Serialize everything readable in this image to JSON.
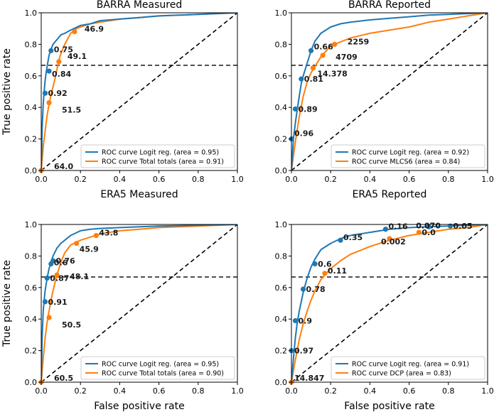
{
  "colors": {
    "blue": "#1f77b4",
    "orange": "#ff7f0e",
    "ref": "#000000"
  },
  "shared": {
    "xticks": [
      "0.0",
      "0.2",
      "0.4",
      "0.6",
      "0.8",
      "1.0"
    ],
    "yticks": [
      "0.0",
      "0.2",
      "0.4",
      "0.6",
      "0.8",
      "1.0"
    ],
    "hline": 0.667
  },
  "chart_data": [
    {
      "type": "line",
      "title": "BARRA Measured",
      "xlabel": "ERA5 Measured",
      "ylabel": "True positive rate",
      "xlim": [
        0,
        1
      ],
      "ylim": [
        0,
        1
      ],
      "legend_position": "lower-right",
      "series": [
        {
          "name": "ROC curve Logit reg. (area = 0.95)",
          "color": "blue",
          "x": [
            0,
            0.005,
            0.01,
            0.015,
            0.02,
            0.025,
            0.03,
            0.04,
            0.05,
            0.06,
            0.08,
            0.1,
            0.12,
            0.15,
            0.2,
            0.25,
            0.3,
            0.4,
            0.5,
            0.6,
            0.8,
            1.0
          ],
          "y": [
            0,
            0.28,
            0.42,
            0.5,
            0.57,
            0.62,
            0.66,
            0.73,
            0.77,
            0.8,
            0.83,
            0.86,
            0.87,
            0.89,
            0.92,
            0.93,
            0.95,
            0.96,
            0.97,
            0.98,
            0.99,
            1.0
          ],
          "points": [
            {
              "x": 0.04,
              "y": 0.63,
              "label": "0.84"
            },
            {
              "x": 0.05,
              "y": 0.76,
              "label": "0.75"
            },
            {
              "x": 0.02,
              "y": 0.49,
              "label": "0.92"
            }
          ]
        },
        {
          "name": "ROC curve Total totals (area = 0.91)",
          "color": "orange",
          "x": [
            0,
            0.01,
            0.02,
            0.03,
            0.04,
            0.05,
            0.06,
            0.07,
            0.08,
            0.09,
            0.1,
            0.12,
            0.15,
            0.18,
            0.2,
            0.25,
            0.3,
            0.35,
            0.4,
            0.5,
            0.6,
            0.8,
            1.0
          ],
          "y": [
            0,
            0.15,
            0.25,
            0.35,
            0.42,
            0.48,
            0.53,
            0.58,
            0.64,
            0.7,
            0.74,
            0.8,
            0.87,
            0.9,
            0.91,
            0.93,
            0.94,
            0.95,
            0.96,
            0.97,
            0.98,
            0.99,
            1.0
          ],
          "points": [
            {
              "x": 0.04,
              "y": 0.43,
              "label": "51.5"
            },
            {
              "x": 0.09,
              "y": 0.69,
              "label": "49.1"
            },
            {
              "x": 0.17,
              "y": 0.88,
              "label": "46.9"
            },
            {
              "x": 0.0,
              "y": 0.0,
              "label": "64.0"
            }
          ]
        }
      ]
    },
    {
      "type": "line",
      "title": "BARRA Reported",
      "xlabel": "ERA5 Reported",
      "ylabel": "",
      "xlim": [
        0,
        1
      ],
      "ylim": [
        0,
        1
      ],
      "legend_position": "lower-right",
      "series": [
        {
          "name": "ROC curve Logit reg. (area = 0.92)",
          "color": "blue",
          "x": [
            0,
            0.01,
            0.02,
            0.03,
            0.04,
            0.05,
            0.06,
            0.08,
            0.1,
            0.12,
            0.15,
            0.2,
            0.25,
            0.3,
            0.4,
            0.5,
            0.6,
            0.7,
            0.8,
            0.9,
            1.0
          ],
          "y": [
            0,
            0.2,
            0.3,
            0.39,
            0.47,
            0.55,
            0.6,
            0.68,
            0.76,
            0.82,
            0.87,
            0.91,
            0.93,
            0.94,
            0.955,
            0.965,
            0.975,
            0.985,
            0.99,
            0.995,
            1.0
          ],
          "points": [
            {
              "x": 0.0,
              "y": 0.2,
              "label": "0.96"
            },
            {
              "x": 0.02,
              "y": 0.39,
              "label": "0.89"
            },
            {
              "x": 0.05,
              "y": 0.58,
              "label": "0.81"
            },
            {
              "x": 0.1,
              "y": 0.76,
              "label": "0.66"
            }
          ]
        },
        {
          "name": "ROC curve MLCS6 (area = 0.84)",
          "color": "orange",
          "x": [
            0,
            0.02,
            0.04,
            0.06,
            0.08,
            0.1,
            0.12,
            0.15,
            0.2,
            0.3,
            0.4,
            0.5,
            0.6,
            0.7,
            0.8,
            0.9,
            1.0
          ],
          "y": [
            0,
            0.18,
            0.34,
            0.47,
            0.56,
            0.62,
            0.66,
            0.72,
            0.79,
            0.84,
            0.87,
            0.89,
            0.91,
            0.94,
            0.96,
            0.98,
            1.0
          ],
          "points": [
            {
              "x": 0.11,
              "y": 0.65,
              "label": "14.378"
            },
            {
              "x": 0.16,
              "y": 0.73,
              "label": "4709"
            },
            {
              "x": 0.22,
              "y": 0.8,
              "label": "2259"
            }
          ]
        }
      ]
    },
    {
      "type": "line",
      "title": "",
      "xlabel": "False positive rate",
      "ylabel": "True positive rate",
      "xlim": [
        0,
        1
      ],
      "ylim": [
        0,
        1
      ],
      "legend_position": "lower-right",
      "series": [
        {
          "name": "ROC curve Logit reg. (area = 0.95)",
          "color": "blue",
          "x": [
            0,
            0.005,
            0.01,
            0.015,
            0.02,
            0.025,
            0.03,
            0.04,
            0.05,
            0.06,
            0.08,
            0.1,
            0.12,
            0.15,
            0.2,
            0.25,
            0.3,
            0.4,
            0.5,
            0.6,
            0.8,
            1.0
          ],
          "y": [
            0,
            0.3,
            0.45,
            0.52,
            0.58,
            0.62,
            0.66,
            0.72,
            0.76,
            0.8,
            0.85,
            0.88,
            0.9,
            0.93,
            0.96,
            0.97,
            0.975,
            0.98,
            0.985,
            0.99,
            0.995,
            1.0
          ],
          "points": [
            {
              "x": 0.02,
              "y": 0.51,
              "label": "0.91"
            },
            {
              "x": 0.03,
              "y": 0.66,
              "label": "0.87"
            },
            {
              "x": 0.06,
              "y": 0.77,
              "label": "0.76"
            },
            {
              "x": 0.05,
              "y": 0.75,
              "label": "0.6"
            }
          ]
        },
        {
          "name": "ROC curve Total totals (area = 0.90)",
          "color": "orange",
          "x": [
            0,
            0.01,
            0.02,
            0.03,
            0.04,
            0.05,
            0.06,
            0.07,
            0.08,
            0.1,
            0.12,
            0.15,
            0.2,
            0.25,
            0.3,
            0.4,
            0.5,
            0.6,
            0.8,
            1.0
          ],
          "y": [
            0,
            0.15,
            0.28,
            0.38,
            0.45,
            0.52,
            0.58,
            0.63,
            0.68,
            0.76,
            0.82,
            0.87,
            0.9,
            0.92,
            0.94,
            0.96,
            0.97,
            0.98,
            0.99,
            1.0
          ],
          "points": [
            {
              "x": 0.04,
              "y": 0.41,
              "label": "50.5"
            },
            {
              "x": 0.08,
              "y": 0.68,
              "label": "48.1"
            },
            {
              "x": 0.18,
              "y": 0.88,
              "label": "45.9"
            },
            {
              "x": 0.28,
              "y": 0.93,
              "label": "43.8"
            },
            {
              "x": 0.0,
              "y": 0.0,
              "label": "60.5"
            }
          ]
        }
      ]
    },
    {
      "type": "line",
      "title": "",
      "xlabel": "False positive rate",
      "ylabel": "",
      "xlim": [
        0,
        1
      ],
      "ylim": [
        0,
        1
      ],
      "legend_position": "lower-right",
      "series": [
        {
          "name": "ROC curve Logit reg. (area = 0.91)",
          "color": "blue",
          "x": [
            0,
            0.01,
            0.02,
            0.03,
            0.04,
            0.06,
            0.08,
            0.1,
            0.12,
            0.15,
            0.2,
            0.25,
            0.3,
            0.4,
            0.5,
            0.6,
            0.7,
            0.8,
            0.9,
            1.0
          ],
          "y": [
            0,
            0.15,
            0.28,
            0.38,
            0.45,
            0.57,
            0.66,
            0.73,
            0.78,
            0.84,
            0.88,
            0.91,
            0.93,
            0.95,
            0.97,
            0.98,
            0.985,
            0.99,
            0.995,
            1.0
          ],
          "points": [
            {
              "x": 0.0,
              "y": 0.2,
              "label": "0.97"
            },
            {
              "x": 0.02,
              "y": 0.39,
              "label": "0.9"
            },
            {
              "x": 0.06,
              "y": 0.59,
              "label": "0.78"
            },
            {
              "x": 0.12,
              "y": 0.75,
              "label": "0.6"
            },
            {
              "x": 0.25,
              "y": 0.9,
              "label": "0.35"
            },
            {
              "x": 0.48,
              "y": 0.97,
              "label": "0.16"
            },
            {
              "x": 0.7,
              "y": 0.985,
              "label": "0.070"
            },
            {
              "x": 0.81,
              "y": 0.99,
              "label": "0.05"
            }
          ]
        },
        {
          "name": "ROC curve DCP (area = 0.83)",
          "color": "orange",
          "x": [
            0,
            0.02,
            0.04,
            0.06,
            0.08,
            0.1,
            0.12,
            0.15,
            0.2,
            0.25,
            0.3,
            0.4,
            0.5,
            0.6,
            0.7,
            0.8,
            0.9,
            1.0
          ],
          "y": [
            0,
            0.14,
            0.27,
            0.37,
            0.45,
            0.52,
            0.58,
            0.65,
            0.72,
            0.77,
            0.81,
            0.86,
            0.9,
            0.93,
            0.95,
            0.97,
            0.98,
            1.0
          ],
          "points": [
            {
              "x": 0.0,
              "y": 0.0,
              "label": "14.847"
            },
            {
              "x": 0.17,
              "y": 0.69,
              "label": "0.11"
            },
            {
              "x": 0.5,
              "y": 0.91,
              "label": "0.002"
            },
            {
              "x": 0.65,
              "y": 0.95,
              "label": "0.0"
            }
          ]
        }
      ]
    }
  ]
}
